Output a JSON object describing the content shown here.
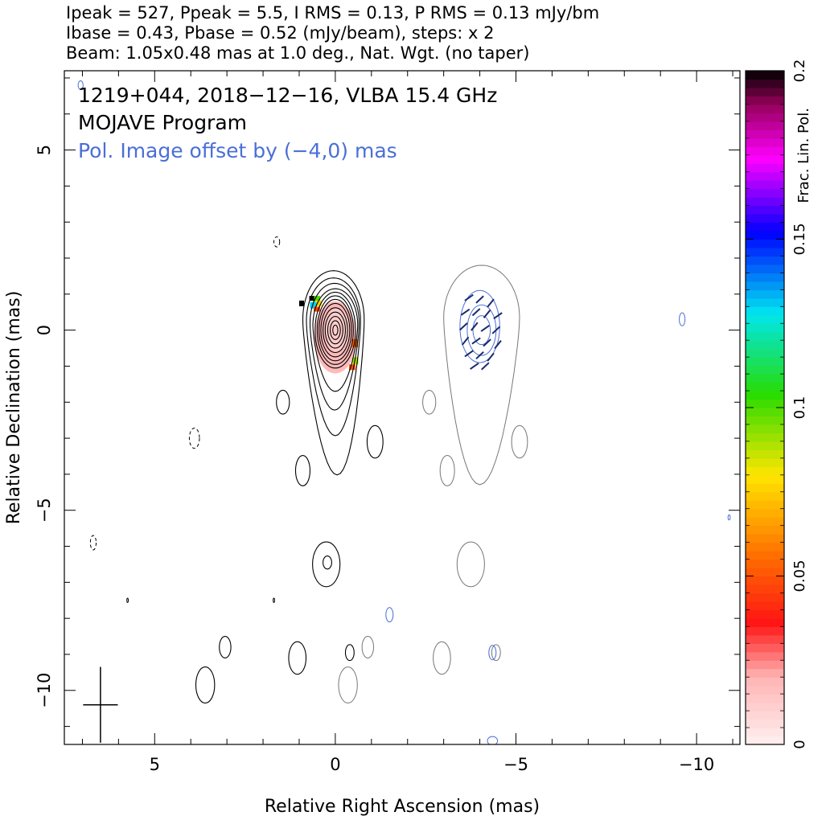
{
  "header": {
    "line1": "Ipeak = 527, Ppeak = 5.5, I RMS = 0.13, P RMS = 0.13 mJy/bm",
    "line2": "Ibase = 0.43, Pbase = 0.52 (mJy/beam), steps: x 2",
    "line3": "Beam: 1.05x0.48 mas at 1.0 deg., Nat. Wgt. (no taper)"
  },
  "chart_data": {
    "type": "contour",
    "source": "1219+044",
    "date": "2018-12-16",
    "instrument": "VLBA 15.4 GHz",
    "text_lines": [
      "1219+044, 2018−12−16, VLBA 15.4 GHz",
      "MOJAVE Program",
      "Pol. Image offset by (−4,0) mas"
    ],
    "offset_text_color": "#4a6fd6",
    "xlabel": "Relative Right Ascension (mas)",
    "ylabel": "Relative Declination (mas)",
    "xlim": [
      7.5,
      -11.2
    ],
    "ylim": [
      -11.5,
      7.2
    ],
    "xticks": [
      5,
      0,
      -5,
      -10
    ],
    "xtick_labels": [
      "5",
      "0",
      "−5",
      "−10"
    ],
    "yticks": [
      5,
      0,
      -5,
      -10
    ],
    "ytick_labels": [
      "5",
      "0",
      "−5",
      "−10"
    ],
    "beam": {
      "major_mas": 1.05,
      "minor_mas": 0.48,
      "pa_deg": 1.0
    },
    "total_intensity": {
      "peak_mjy_per_beam": 527,
      "base_mjy_per_beam": 0.43,
      "step_factor": 2,
      "core": {
        "ra": 0.0,
        "dec": 0.0
      },
      "jet_direction": "south",
      "color": "#000000"
    },
    "polarization": {
      "peak_mjy_per_beam": 5.5,
      "base_mjy_per_beam": 0.52,
      "offset_mas": [
        -4,
        0
      ],
      "contour_color": "#777777",
      "evpa_color": "#1a2a6c"
    },
    "colorbar": {
      "label": "Frac. Lin. Pol.",
      "min": 0,
      "max": 0.2,
      "ticks": [
        "0",
        "0.05",
        "0.1",
        "0.15",
        "0.2"
      ],
      "tick_values": [
        0,
        0.05,
        0.1,
        0.15,
        0.2
      ]
    },
    "blue_contours_color": "#4a6fd6",
    "rms": {
      "I": 0.13,
      "P": 0.13,
      "unit": "mJy/bm"
    }
  }
}
